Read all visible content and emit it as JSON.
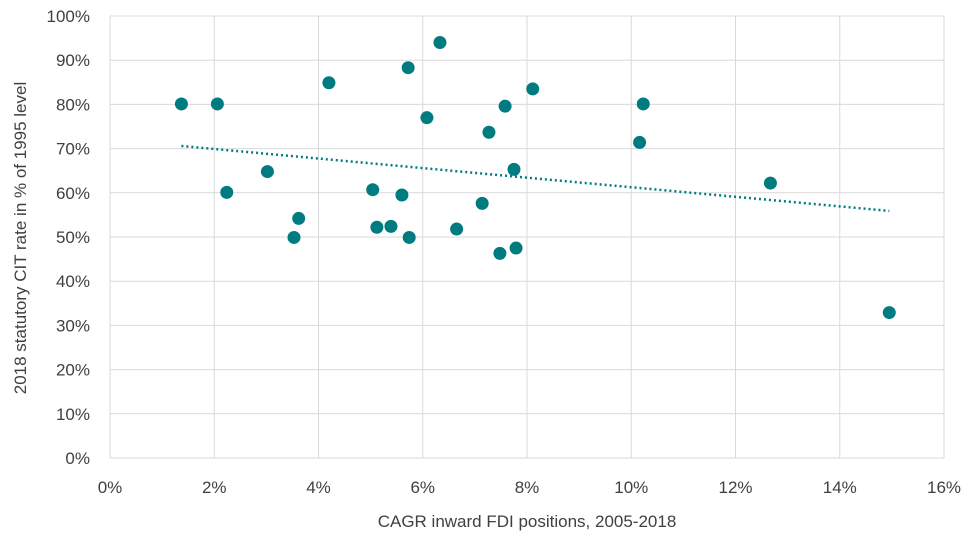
{
  "chart_data": {
    "type": "scatter",
    "title": "",
    "xlabel": "CAGR inward FDI positions, 2005-2018",
    "ylabel": "2018 statutory CIT rate in % of 1995 level",
    "xlim": [
      0,
      16
    ],
    "ylim": [
      0,
      100
    ],
    "x_ticks": [
      0,
      2,
      4,
      6,
      8,
      10,
      12,
      14,
      16
    ],
    "y_ticks": [
      0,
      10,
      20,
      30,
      40,
      50,
      60,
      70,
      80,
      90,
      100
    ],
    "x_tick_labels": [
      "0%",
      "2%",
      "4%",
      "6%",
      "8%",
      "10%",
      "12%",
      "14%",
      "16%"
    ],
    "y_tick_labels": [
      "0%",
      "10%",
      "20%",
      "30%",
      "40%",
      "50%",
      "60%",
      "70%",
      "80%",
      "90%",
      "100%"
    ],
    "grid": true,
    "legend": "none",
    "marker_color": "#007C80",
    "trendline": {
      "type": "linear",
      "style": "dotted",
      "color": "#007C80",
      "x_start": 1.37,
      "y_start": 70.6,
      "x_end": 14.95,
      "y_end": 55.9
    },
    "points": [
      {
        "x": 1.37,
        "y": 80.1
      },
      {
        "x": 2.06,
        "y": 80.1
      },
      {
        "x": 2.24,
        "y": 60.1
      },
      {
        "x": 3.02,
        "y": 64.8
      },
      {
        "x": 3.53,
        "y": 49.9
      },
      {
        "x": 3.62,
        "y": 54.2
      },
      {
        "x": 4.2,
        "y": 84.9
      },
      {
        "x": 5.04,
        "y": 60.7
      },
      {
        "x": 5.12,
        "y": 52.2
      },
      {
        "x": 5.39,
        "y": 52.4
      },
      {
        "x": 5.6,
        "y": 59.5
      },
      {
        "x": 5.72,
        "y": 88.3
      },
      {
        "x": 5.74,
        "y": 49.9
      },
      {
        "x": 6.08,
        "y": 77.0
      },
      {
        "x": 6.33,
        "y": 94.0
      },
      {
        "x": 6.65,
        "y": 51.8
      },
      {
        "x": 7.14,
        "y": 57.6
      },
      {
        "x": 7.27,
        "y": 73.7
      },
      {
        "x": 7.48,
        "y": 46.3
      },
      {
        "x": 7.58,
        "y": 79.6
      },
      {
        "x": 7.75,
        "y": 65.3
      },
      {
        "x": 7.79,
        "y": 47.5
      },
      {
        "x": 8.11,
        "y": 83.5
      },
      {
        "x": 10.16,
        "y": 71.4
      },
      {
        "x": 10.23,
        "y": 80.1
      },
      {
        "x": 12.67,
        "y": 62.2
      },
      {
        "x": 14.95,
        "y": 32.9
      }
    ]
  }
}
